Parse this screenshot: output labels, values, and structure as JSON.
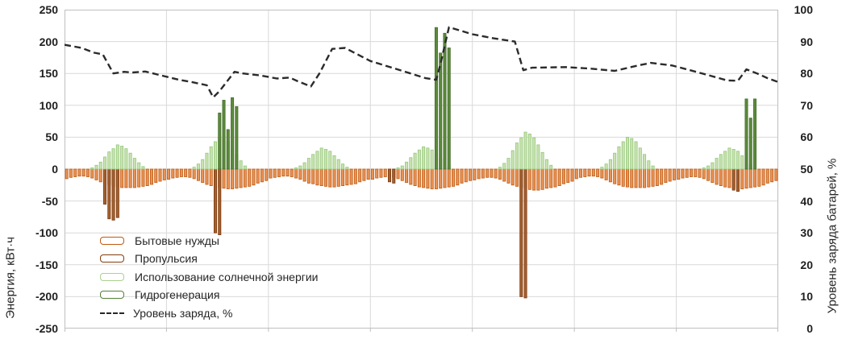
{
  "chart": {
    "left_axis": {
      "title": "Энергия, кВт·ч",
      "ticks": [
        "250",
        "200",
        "150",
        "100",
        "50",
        "0",
        "-50",
        "-100",
        "-150",
        "-200",
        "-250"
      ]
    },
    "right_axis": {
      "title": "Уровень заряда батарей, %",
      "ticks": [
        "100",
        "90",
        "80",
        "70",
        "60",
        "50",
        "40",
        "30",
        "20",
        "10",
        "0"
      ]
    },
    "legend": [
      {
        "label": "Бытовые нужды",
        "type": "bar",
        "color": "#C05A11"
      },
      {
        "label": "Пропульсия",
        "type": "bar",
        "color": "#843C0C"
      },
      {
        "label": "Использование солнечной энергии",
        "type": "bar",
        "color": "#A9D18E"
      },
      {
        "label": "Гидрогенерация",
        "type": "bar",
        "color": "#538135"
      },
      {
        "label": "Уровень заряда, %",
        "type": "dashed-line",
        "color": "#262626"
      }
    ],
    "colors": {
      "grid": "#D9D9D9",
      "border": "#BFBFBF",
      "text": "#262626",
      "line": "#2B2B2B"
    }
  },
  "chart_data": {
    "type": "bar",
    "title": "",
    "xlabel": "",
    "left_ylabel": "Энергия, кВт·ч",
    "right_ylabel": "Уровень заряда батарей, %",
    "x_unit": "hour",
    "x_count": 168,
    "days": 7,
    "left_ylim": [
      -250,
      250
    ],
    "right_ylim": [
      0,
      100
    ],
    "grid": true,
    "legend_position": "inside-bottom-left",
    "x_tick_labels_visible": false,
    "series": [
      {
        "name": "Бытовые нужды",
        "type": "bar",
        "axis": "left",
        "fill": "#E89356",
        "stroke": "#C05A11",
        "values": [
          -15,
          -13,
          -12,
          -11,
          -11,
          -12,
          -14,
          -17,
          -20,
          -23,
          -25,
          -27,
          -28,
          -29,
          -29,
          -29,
          -29,
          -28,
          -27,
          -26,
          -24,
          -21,
          -19,
          -17,
          -16,
          -14,
          -13,
          -12,
          -12,
          -13,
          -15,
          -18,
          -21,
          -24,
          -26,
          -28,
          -29,
          -30,
          -31,
          -31,
          -30,
          -29,
          -28,
          -27,
          -25,
          -22,
          -20,
          -18,
          -14,
          -13,
          -12,
          -11,
          -11,
          -12,
          -14,
          -16,
          -19,
          -22,
          -23,
          -25,
          -26,
          -27,
          -28,
          -28,
          -27,
          -26,
          -25,
          -24,
          -23,
          -20,
          -18,
          -16,
          -16,
          -14,
          -13,
          -12,
          -12,
          -13,
          -15,
          -18,
          -21,
          -24,
          -26,
          -28,
          -29,
          -30,
          -31,
          -31,
          -30,
          -29,
          -28,
          -27,
          -25,
          -22,
          -20,
          -18,
          -17,
          -15,
          -14,
          -13,
          -13,
          -14,
          -16,
          -19,
          -22,
          -25,
          -27,
          -29,
          -30,
          -32,
          -33,
          -33,
          -32,
          -30,
          -29,
          -28,
          -26,
          -23,
          -21,
          -19,
          -15,
          -13,
          -12,
          -11,
          -11,
          -12,
          -14,
          -17,
          -20,
          -23,
          -25,
          -27,
          -28,
          -29,
          -29,
          -29,
          -29,
          -28,
          -27,
          -26,
          -24,
          -21,
          -19,
          -17,
          -16,
          -14,
          -13,
          -12,
          -12,
          -13,
          -15,
          -18,
          -21,
          -24,
          -26,
          -28,
          -29,
          -30,
          -31,
          -31,
          -30,
          -29,
          -28,
          -27,
          -25,
          -22,
          -20,
          -18
        ]
      },
      {
        "name": "Пропульсия",
        "type": "bar",
        "axis": "left",
        "fill": "#A4612F",
        "stroke": "#7B3A10",
        "values": [
          0,
          0,
          0,
          0,
          0,
          0,
          0,
          0,
          0,
          -55,
          -78,
          -80,
          -76,
          0,
          0,
          0,
          0,
          0,
          0,
          0,
          0,
          0,
          0,
          0,
          0,
          0,
          0,
          0,
          0,
          0,
          0,
          0,
          0,
          0,
          0,
          -100,
          -103,
          0,
          0,
          0,
          0,
          0,
          0,
          0,
          0,
          0,
          0,
          0,
          0,
          0,
          0,
          0,
          0,
          0,
          0,
          0,
          0,
          0,
          0,
          0,
          0,
          0,
          0,
          0,
          0,
          0,
          0,
          0,
          0,
          0,
          0,
          0,
          0,
          0,
          0,
          0,
          -20,
          -22,
          0,
          0,
          0,
          0,
          0,
          0,
          0,
          0,
          0,
          0,
          0,
          0,
          0,
          0,
          0,
          0,
          0,
          0,
          0,
          0,
          0,
          0,
          0,
          0,
          0,
          0,
          0,
          0,
          0,
          -200,
          -202,
          0,
          0,
          0,
          0,
          0,
          0,
          0,
          0,
          0,
          0,
          0,
          0,
          0,
          0,
          0,
          0,
          0,
          0,
          0,
          0,
          0,
          0,
          0,
          0,
          0,
          0,
          0,
          0,
          0,
          0,
          0,
          0,
          0,
          0,
          0,
          0,
          0,
          0,
          0,
          0,
          0,
          0,
          0,
          0,
          0,
          0,
          0,
          0,
          -33,
          -35,
          0,
          0,
          0,
          0,
          0,
          0,
          0,
          0,
          0
        ]
      },
      {
        "name": "Использование солнечной энергии",
        "type": "bar",
        "axis": "left",
        "fill": "#C9E2B2",
        "stroke": "#94C878",
        "values": [
          0,
          0,
          0,
          0,
          0,
          0,
          2,
          6,
          11,
          19,
          27,
          32,
          38,
          36,
          32,
          25,
          17,
          10,
          4,
          0,
          0,
          0,
          0,
          0,
          0,
          0,
          0,
          0,
          0,
          0,
          3,
          8,
          15,
          25,
          35,
          43,
          50,
          48,
          43,
          33,
          23,
          13,
          5,
          0,
          0,
          0,
          0,
          0,
          0,
          0,
          0,
          0,
          0,
          0,
          2,
          5,
          10,
          17,
          23,
          28,
          33,
          31,
          28,
          21,
          15,
          8,
          3,
          0,
          0,
          0,
          0,
          0,
          0,
          0,
          0,
          0,
          0,
          0,
          2,
          5,
          11,
          18,
          25,
          30,
          35,
          33,
          30,
          23,
          16,
          9,
          4,
          0,
          0,
          0,
          0,
          0,
          0,
          0,
          0,
          0,
          0,
          0,
          3,
          9,
          17,
          29,
          41,
          49,
          58,
          55,
          49,
          38,
          26,
          15,
          6,
          0,
          0,
          0,
          0,
          0,
          0,
          0,
          0,
          0,
          0,
          0,
          3,
          8,
          15,
          25,
          35,
          43,
          50,
          48,
          43,
          33,
          23,
          13,
          5,
          0,
          0,
          0,
          0,
          0,
          0,
          0,
          0,
          0,
          0,
          0,
          2,
          5,
          10,
          17,
          23,
          28,
          33,
          31,
          28,
          21,
          15,
          8,
          3,
          0,
          0,
          0,
          0,
          0
        ]
      },
      {
        "name": "Гидрогенерация",
        "type": "bar",
        "axis": "left",
        "fill": "#5C8A3C",
        "stroke": "#466F2D",
        "values": [
          0,
          0,
          0,
          0,
          0,
          0,
          0,
          0,
          0,
          0,
          0,
          0,
          0,
          0,
          0,
          0,
          0,
          0,
          0,
          0,
          0,
          0,
          0,
          0,
          0,
          0,
          0,
          0,
          0,
          0,
          0,
          0,
          0,
          0,
          0,
          0,
          88,
          108,
          62,
          112,
          98,
          0,
          0,
          0,
          0,
          0,
          0,
          0,
          0,
          0,
          0,
          0,
          0,
          0,
          0,
          0,
          0,
          0,
          0,
          0,
          0,
          0,
          0,
          0,
          0,
          0,
          0,
          0,
          0,
          0,
          0,
          0,
          0,
          0,
          0,
          0,
          0,
          0,
          0,
          0,
          0,
          0,
          0,
          0,
          0,
          0,
          0,
          222,
          182,
          213,
          190,
          0,
          0,
          0,
          0,
          0,
          0,
          0,
          0,
          0,
          0,
          0,
          0,
          0,
          0,
          0,
          0,
          0,
          0,
          0,
          0,
          0,
          0,
          0,
          0,
          0,
          0,
          0,
          0,
          0,
          0,
          0,
          0,
          0,
          0,
          0,
          0,
          0,
          0,
          0,
          0,
          0,
          0,
          0,
          0,
          0,
          0,
          0,
          0,
          0,
          0,
          0,
          0,
          0,
          0,
          0,
          0,
          0,
          0,
          0,
          0,
          0,
          0,
          0,
          0,
          0,
          0,
          0,
          0,
          0,
          110,
          80,
          110,
          0,
          0,
          0,
          0,
          0
        ]
      },
      {
        "name": "Уровень заряда, %",
        "type": "line",
        "axis": "right",
        "color": "#2B2B2B",
        "dashed": true,
        "points": [
          [
            0,
            89
          ],
          [
            4,
            88
          ],
          [
            7,
            86.5
          ],
          [
            9,
            86
          ],
          [
            11.5,
            80
          ],
          [
            14,
            80.5
          ],
          [
            16,
            80.3
          ],
          [
            19,
            80.6
          ],
          [
            23,
            79.3
          ],
          [
            27,
            78
          ],
          [
            30,
            77.3
          ],
          [
            33.5,
            76.3
          ],
          [
            35,
            72.5
          ],
          [
            36.5,
            74.5
          ],
          [
            40,
            80.5
          ],
          [
            42,
            80
          ],
          [
            46,
            79.4
          ],
          [
            50,
            78.4
          ],
          [
            53,
            78.7
          ],
          [
            55,
            77.5
          ],
          [
            58,
            75.9
          ],
          [
            60,
            80
          ],
          [
            63,
            87.7
          ],
          [
            66,
            88
          ],
          [
            72,
            83.9
          ],
          [
            80,
            80.6
          ],
          [
            85,
            78.5
          ],
          [
            87.5,
            78
          ],
          [
            88.5,
            83
          ],
          [
            90.5,
            94.5
          ],
          [
            93,
            93.5
          ],
          [
            96,
            92.3
          ],
          [
            101,
            91
          ],
          [
            105,
            90.2
          ],
          [
            106,
            90
          ],
          [
            108,
            81
          ],
          [
            110,
            81.8
          ],
          [
            118,
            82
          ],
          [
            124,
            81.5
          ],
          [
            129.5,
            80.8
          ],
          [
            135,
            82.5
          ],
          [
            138,
            83.3
          ],
          [
            143,
            82.5
          ],
          [
            146.5,
            81.3
          ],
          [
            152,
            79.3
          ],
          [
            156,
            77.8
          ],
          [
            158.5,
            77.7
          ],
          [
            160.5,
            81.3
          ],
          [
            163,
            80
          ],
          [
            165.5,
            78.5
          ],
          [
            168,
            77.3
          ]
        ]
      }
    ]
  }
}
